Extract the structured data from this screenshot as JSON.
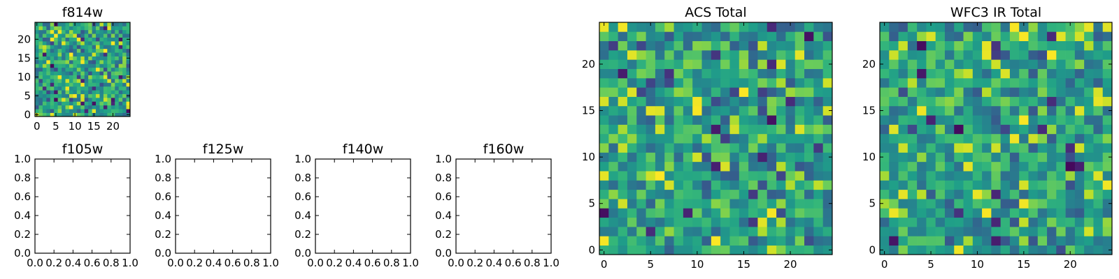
{
  "chart_data": [
    {
      "type": "heatmap",
      "title": "f814w",
      "grid_size": 25,
      "colormap": "viridis",
      "xlim": [
        -0.5,
        24.5
      ],
      "ylim": [
        -0.5,
        24.5
      ],
      "xticks": [
        0,
        5,
        10,
        15,
        20
      ],
      "yticks": [
        0,
        5,
        10,
        15,
        20
      ],
      "xtick_labels": [
        "0",
        "5",
        "10",
        "15",
        "20"
      ],
      "ytick_labels": [
        "0",
        "5",
        "10",
        "15",
        "20"
      ],
      "seed": 814
    },
    {
      "type": "empty",
      "title": "f105w",
      "xlim": [
        0,
        1
      ],
      "ylim": [
        0,
        1
      ],
      "xticks": [
        0.0,
        0.2,
        0.4,
        0.6,
        0.8,
        1.0
      ],
      "yticks": [
        0.0,
        0.2,
        0.4,
        0.6,
        0.8,
        1.0
      ],
      "xtick_labels": [
        "0.0",
        "0.2",
        "0.4",
        "0.6",
        "0.8",
        "1.0"
      ],
      "ytick_labels": [
        "0.0",
        "0.2",
        "0.4",
        "0.6",
        "0.8",
        "1.0"
      ]
    },
    {
      "type": "empty",
      "title": "f125w",
      "xlim": [
        0,
        1
      ],
      "ylim": [
        0,
        1
      ],
      "xticks": [
        0.0,
        0.2,
        0.4,
        0.6,
        0.8,
        1.0
      ],
      "yticks": [
        0.0,
        0.2,
        0.4,
        0.6,
        0.8,
        1.0
      ],
      "xtick_labels": [
        "0.0",
        "0.2",
        "0.4",
        "0.6",
        "0.8",
        "1.0"
      ],
      "ytick_labels": [
        "0.0",
        "0.2",
        "0.4",
        "0.6",
        "0.8",
        "1.0"
      ]
    },
    {
      "type": "empty",
      "title": "f140w",
      "xlim": [
        0,
        1
      ],
      "ylim": [
        0,
        1
      ],
      "xticks": [
        0.0,
        0.2,
        0.4,
        0.6,
        0.8,
        1.0
      ],
      "yticks": [
        0.0,
        0.2,
        0.4,
        0.6,
        0.8,
        1.0
      ],
      "xtick_labels": [
        "0.0",
        "0.2",
        "0.4",
        "0.6",
        "0.8",
        "1.0"
      ],
      "ytick_labels": [
        "0.0",
        "0.2",
        "0.4",
        "0.6",
        "0.8",
        "1.0"
      ]
    },
    {
      "type": "empty",
      "title": "f160w",
      "xlim": [
        0,
        1
      ],
      "ylim": [
        0,
        1
      ],
      "xticks": [
        0.0,
        0.2,
        0.4,
        0.6,
        0.8,
        1.0
      ],
      "yticks": [
        0.0,
        0.2,
        0.4,
        0.6,
        0.8,
        1.0
      ],
      "xtick_labels": [
        "0.0",
        "0.2",
        "0.4",
        "0.6",
        "0.8",
        "1.0"
      ],
      "ytick_labels": [
        "0.0",
        "0.2",
        "0.4",
        "0.6",
        "0.8",
        "1.0"
      ]
    },
    {
      "type": "heatmap",
      "title": "ACS Total",
      "grid_size": 25,
      "colormap": "viridis",
      "xlim": [
        -0.5,
        24.5
      ],
      "ylim": [
        -0.5,
        24.5
      ],
      "xticks": [
        0,
        5,
        10,
        15,
        20
      ],
      "yticks": [
        0,
        5,
        10,
        15,
        20
      ],
      "xtick_labels": [
        "0",
        "5",
        "10",
        "15",
        "20"
      ],
      "ytick_labels": [
        "0",
        "5",
        "10",
        "15",
        "20"
      ],
      "seed": 2017
    },
    {
      "type": "heatmap",
      "title": "WFC3 IR Total",
      "grid_size": 25,
      "colormap": "viridis",
      "xlim": [
        -0.5,
        24.5
      ],
      "ylim": [
        -0.5,
        24.5
      ],
      "xticks": [
        0,
        5,
        10,
        15,
        20
      ],
      "yticks": [
        0,
        5,
        10,
        15,
        20
      ],
      "xtick_labels": [
        "0",
        "5",
        "10",
        "15",
        "20"
      ],
      "ytick_labels": [
        "0",
        "5",
        "10",
        "15",
        "20"
      ],
      "seed": 3160
    }
  ]
}
